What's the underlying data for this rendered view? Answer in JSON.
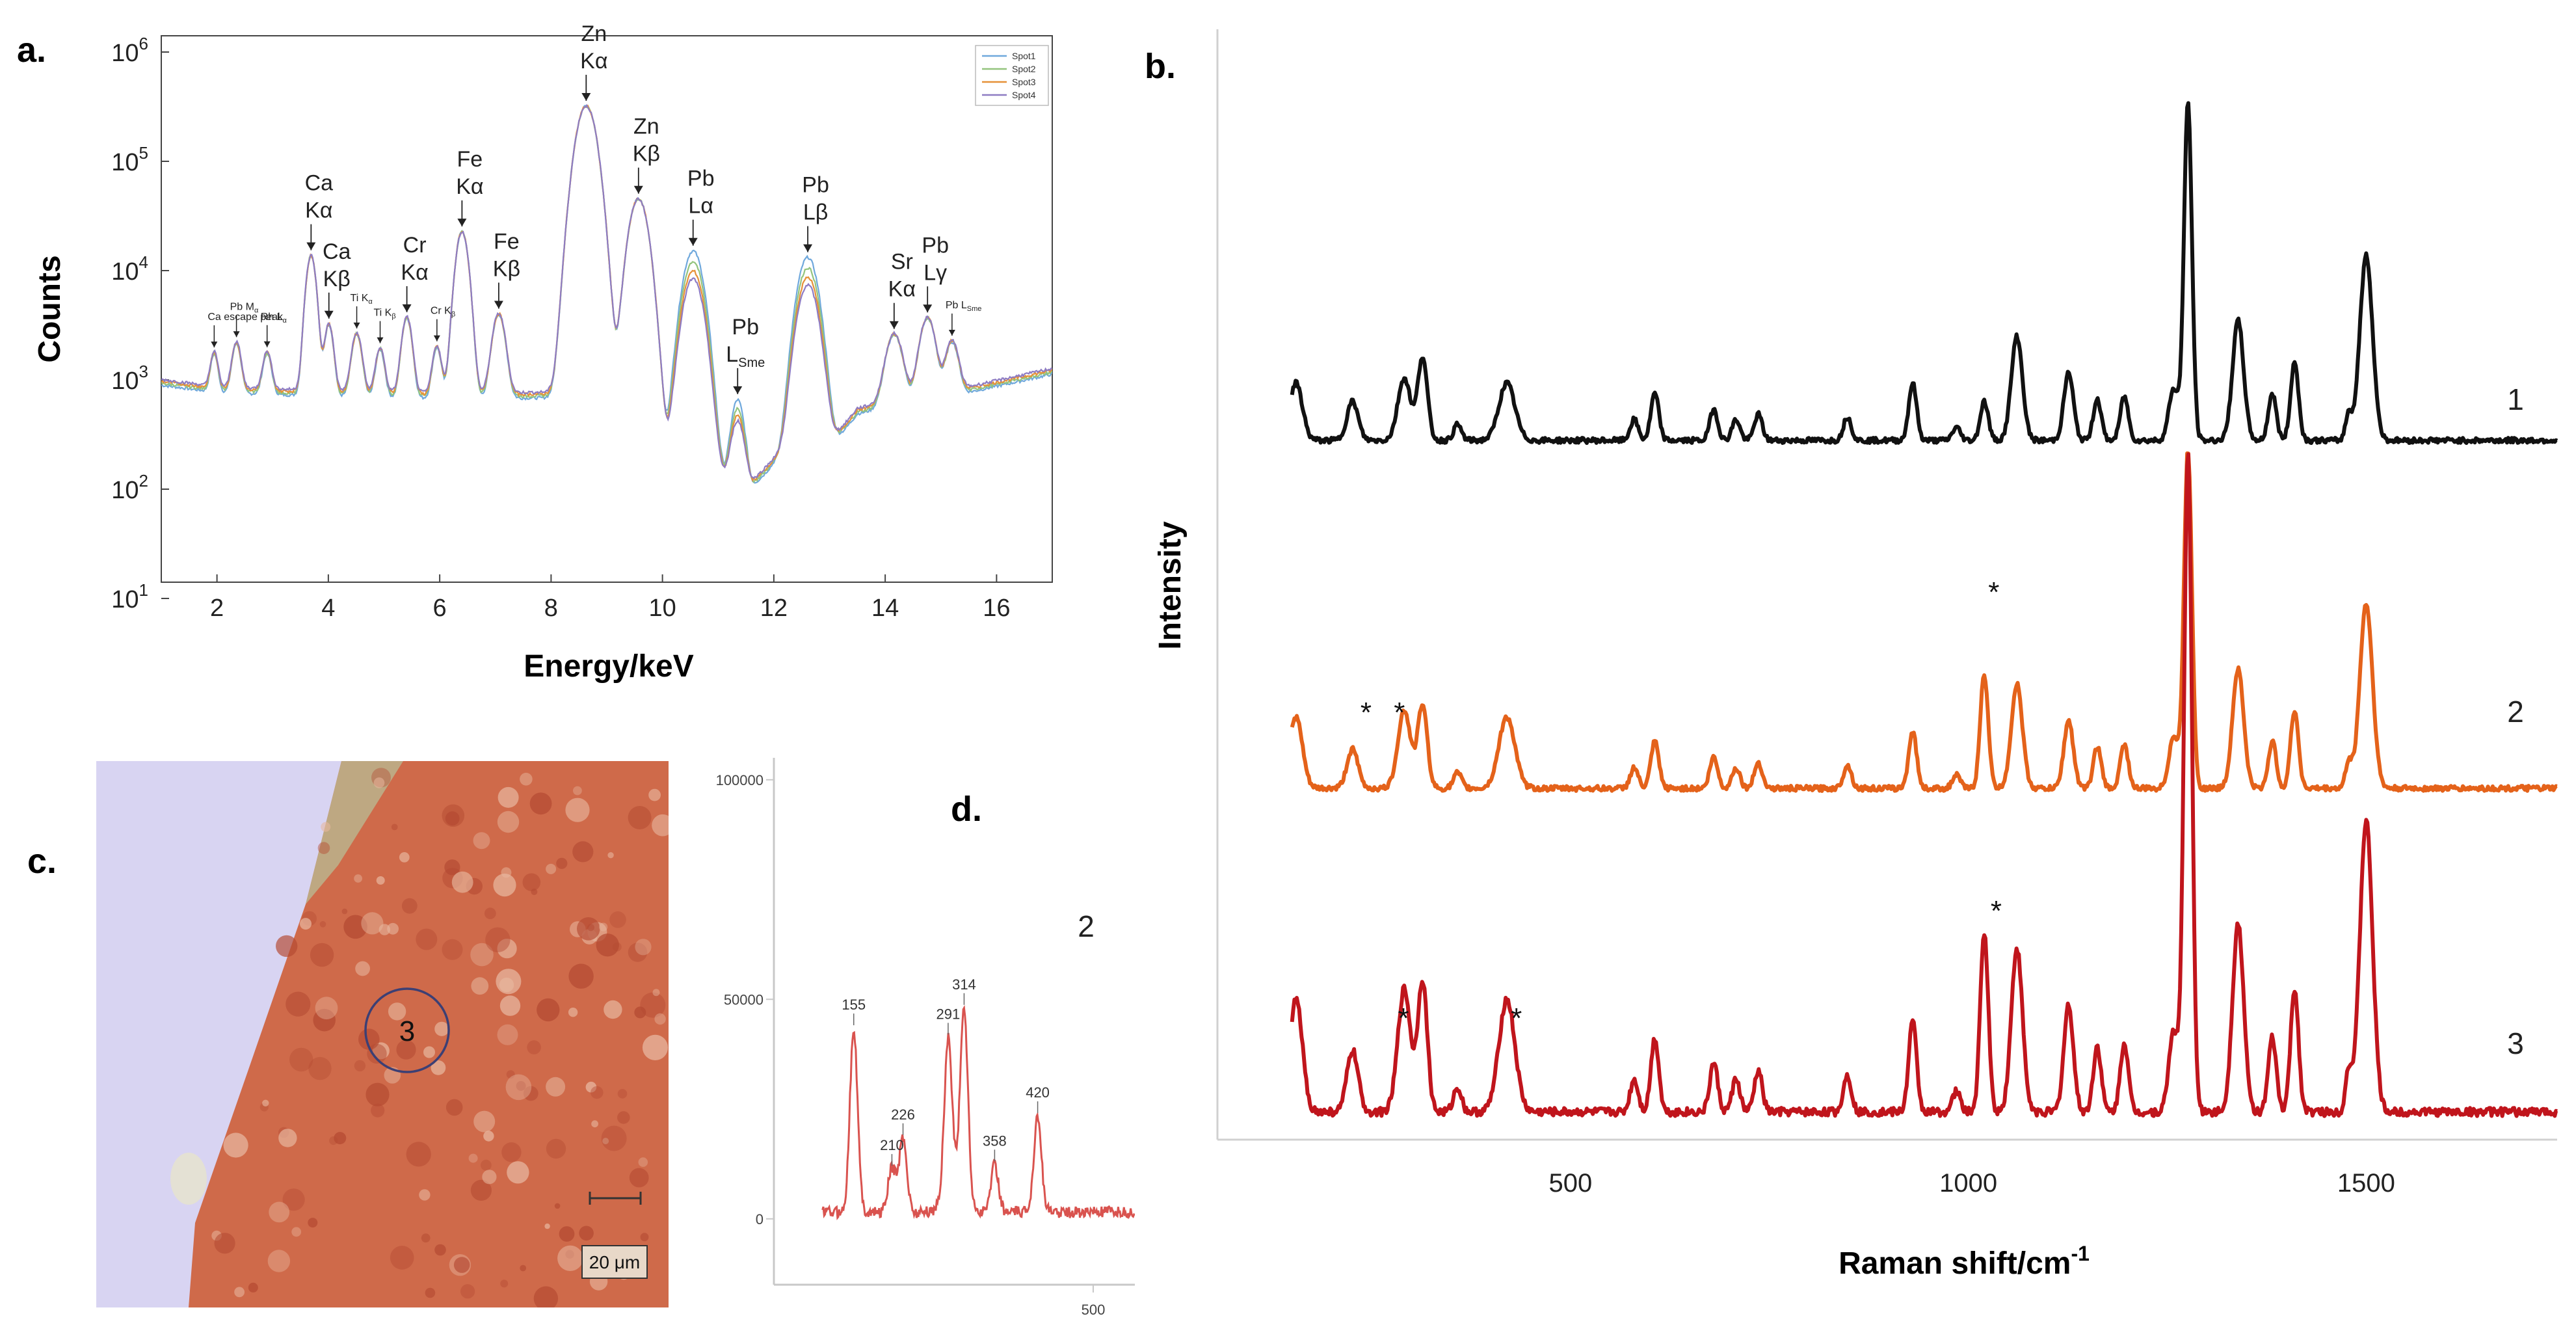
{
  "panel_labels": {
    "a": "a.",
    "b": "b.",
    "c": "c.",
    "d": "d."
  },
  "colors": {
    "xrf_spot1": "#6fa8dc",
    "xrf_spot2": "#93c47d",
    "xrf_spot3": "#e69138",
    "xrf_spot4": "#8e7cc3",
    "raman_1": "#111111",
    "raman_2": "#e4621a",
    "raman_3": "#c0151c",
    "raman_inset": "#d9534f",
    "photo_bg": "#d8d4f2",
    "photo_sample": "#cf6a4a"
  },
  "chart_data": [
    {
      "id": "a",
      "type": "line",
      "title": "",
      "xlabel": "Energy/keV",
      "ylabel": "Counts",
      "xlim": [
        1,
        17
      ],
      "ylim": [
        10,
        1000000
      ],
      "yscale": "log",
      "xticks": [
        "2",
        "4",
        "6",
        "8",
        "10",
        "12",
        "14",
        "16"
      ],
      "yticks": [
        {
          "base": "10",
          "exp": "1"
        },
        {
          "base": "10",
          "exp": "2"
        },
        {
          "base": "10",
          "exp": "3"
        },
        {
          "base": "10",
          "exp": "4"
        },
        {
          "base": "10",
          "exp": "5"
        },
        {
          "base": "10",
          "exp": "6"
        }
      ],
      "legend": {
        "placement": "top-right",
        "entries": [
          "Spot1",
          "Spot2",
          "Spot3",
          "Spot4"
        ]
      },
      "baseline": [
        [
          1.0,
          950
        ],
        [
          2.0,
          820
        ],
        [
          3.0,
          780
        ],
        [
          4.0,
          760
        ],
        [
          5.0,
          740
        ],
        [
          6.0,
          720
        ],
        [
          7.0,
          720
        ],
        [
          8.0,
          730
        ],
        [
          9.0,
          750
        ],
        [
          10.0,
          200
        ],
        [
          10.5,
          150
        ],
        [
          11.0,
          120
        ],
        [
          11.6,
          110
        ],
        [
          12.0,
          180
        ],
        [
          13.0,
          250
        ],
        [
          13.5,
          520
        ],
        [
          14.5,
          680
        ],
        [
          15.5,
          820
        ],
        [
          16.0,
          930
        ],
        [
          17.0,
          1200
        ]
      ],
      "peaks": [
        {
          "label": [
            "Ca escape peak"
          ],
          "energy": 1.95,
          "counts": 950,
          "width": 0.06,
          "small": true
        },
        {
          "label": [
            "Pb M",
            "α"
          ],
          "energy": 2.35,
          "counts": 1400,
          "width": 0.07,
          "small": true
        },
        {
          "label": [
            "Rh L",
            "α"
          ],
          "energy": 2.9,
          "counts": 1000,
          "width": 0.07,
          "small": true
        },
        {
          "label": [
            "Ca",
            "Kα"
          ],
          "energy": 3.69,
          "counts": 13000,
          "width": 0.08
        },
        {
          "label": [
            "Ca",
            "Kβ"
          ],
          "energy": 4.01,
          "counts": 2500,
          "width": 0.07
        },
        {
          "label": [
            "Ti K",
            "α"
          ],
          "energy": 4.51,
          "counts": 1900,
          "width": 0.08,
          "small": true
        },
        {
          "label": [
            "Ti K",
            "β"
          ],
          "energy": 4.93,
          "counts": 1200,
          "width": 0.07,
          "small": true
        },
        {
          "label": [
            "Cr",
            "Kα"
          ],
          "energy": 5.41,
          "counts": 3000,
          "width": 0.08
        },
        {
          "label": [
            "Cr K",
            "β"
          ],
          "energy": 5.95,
          "counts": 1300,
          "width": 0.07,
          "small": true
        },
        {
          "label": [
            "Fe",
            "Kα"
          ],
          "energy": 6.4,
          "counts": 22000,
          "width": 0.1
        },
        {
          "label": [
            "Fe",
            "Kβ"
          ],
          "energy": 7.06,
          "counts": 3300,
          "width": 0.1
        },
        {
          "label": [
            "Zn",
            "Kα"
          ],
          "energy": 8.63,
          "counts": 320000,
          "width": 0.16
        },
        {
          "label": [
            "Zn",
            "Kβ"
          ],
          "energy": 9.57,
          "counts": 45000,
          "width": 0.15
        },
        {
          "label": [
            "Pb",
            "Lα"
          ],
          "energy": 10.55,
          "counts": 15000,
          "width": 0.16
        },
        {
          "label": [
            "Pb",
            "L",
            "Sme"
          ],
          "energy": 11.35,
          "counts": 550,
          "width": 0.1
        },
        {
          "label": [
            "Pb",
            "Lβ"
          ],
          "energy": 12.61,
          "counts": 13000,
          "width": 0.16
        },
        {
          "label": [
            "Sr",
            "Kα"
          ],
          "energy": 14.16,
          "counts": 2000,
          "width": 0.13
        },
        {
          "label": [
            "Pb",
            "Lγ"
          ],
          "energy": 14.76,
          "counts": 3000,
          "width": 0.12
        },
        {
          "label": [
            "Pb L",
            "Sme"
          ],
          "energy": 15.2,
          "counts": 1500,
          "width": 0.1,
          "small": true
        }
      ]
    },
    {
      "id": "b",
      "type": "line",
      "title": "",
      "xlabel": "Raman shift/cm",
      "xlabel_sup": "-1",
      "ylabel": "Intensity",
      "xlim": [
        120,
        1740
      ],
      "xticks": [
        "500",
        "1000",
        "1500"
      ],
      "peaks": [
        {
          "shift": 155,
          "h": 0.22,
          "w": 8
        },
        {
          "shift": 226,
          "h": 0.15,
          "w": 7
        },
        {
          "shift": 291,
          "h": 0.24,
          "w": 8
        },
        {
          "shift": 314,
          "h": 0.32,
          "w": 6
        },
        {
          "shift": 358,
          "h": 0.06,
          "w": 5
        },
        {
          "shift": 420,
          "h": 0.22,
          "w": 10
        },
        {
          "shift": 580,
          "h": 0.08,
          "w": 5
        },
        {
          "shift": 606,
          "h": 0.18,
          "w": 5
        },
        {
          "shift": 680,
          "h": 0.12,
          "w": 5
        },
        {
          "shift": 708,
          "h": 0.08,
          "w": 5
        },
        {
          "shift": 736,
          "h": 0.1,
          "w": 5
        },
        {
          "shift": 848,
          "h": 0.09,
          "w": 5
        },
        {
          "shift": 930,
          "h": 0.22,
          "w": 5
        },
        {
          "shift": 985,
          "h": 0.05,
          "w": 5
        },
        {
          "shift": 1020,
          "h": 0.15,
          "w": 5
        },
        {
          "shift": 1061,
          "h": 0.4,
          "w": 7
        },
        {
          "shift": 1126,
          "h": 0.26,
          "w": 6
        },
        {
          "shift": 1162,
          "h": 0.16,
          "w": 5
        },
        {
          "shift": 1196,
          "h": 0.17,
          "w": 5
        },
        {
          "shift": 1258,
          "h": 0.2,
          "w": 6
        },
        {
          "shift": 1276,
          "h": 1.3,
          "w": 5
        },
        {
          "shift": 1339,
          "h": 0.46,
          "w": 7
        },
        {
          "shift": 1382,
          "h": 0.18,
          "w": 5
        },
        {
          "shift": 1410,
          "h": 0.3,
          "w": 5
        },
        {
          "shift": 1478,
          "h": 0.1,
          "w": 4
        },
        {
          "shift": 1500,
          "h": 0.71,
          "w": 8
        }
      ],
      "series": [
        {
          "name": "1",
          "label": "1",
          "markers": []
        },
        {
          "name": "2",
          "label": "2",
          "markers": [
            {
              "shift": 243,
              "text": "*"
            },
            {
              "shift": 285,
              "text": "*"
            },
            {
              "shift": 1032,
              "text": "*"
            }
          ]
        },
        {
          "name": "3",
          "label": "3",
          "markers": [
            {
              "shift": 290,
              "text": "*"
            },
            {
              "shift": 432,
              "text": "*"
            },
            {
              "shift": 1035,
              "text": "*"
            }
          ]
        }
      ]
    },
    {
      "id": "d",
      "type": "line",
      "title": "",
      "xlim": [
        40,
        560
      ],
      "ylim": [
        -15000,
        105000
      ],
      "yticks": [
        "0",
        "50000",
        "100000"
      ],
      "xticks": [
        "500"
      ],
      "series_label": "2",
      "peaks": [
        {
          "shift": 155,
          "value": 42000,
          "label": "155"
        },
        {
          "shift": 210,
          "value": 10000,
          "label": "210"
        },
        {
          "shift": 226,
          "value": 17000,
          "label": "226"
        },
        {
          "shift": 291,
          "value": 35000,
          "label": "291"
        },
        {
          "shift": 314,
          "value": 43000,
          "label": "314"
        },
        {
          "shift": 358,
          "value": 11000,
          "label": "358"
        },
        {
          "shift": 420,
          "value": 22000,
          "label": "420"
        }
      ]
    }
  ],
  "photo": {
    "spot_label": "3",
    "scale_bar": "20 μm"
  }
}
